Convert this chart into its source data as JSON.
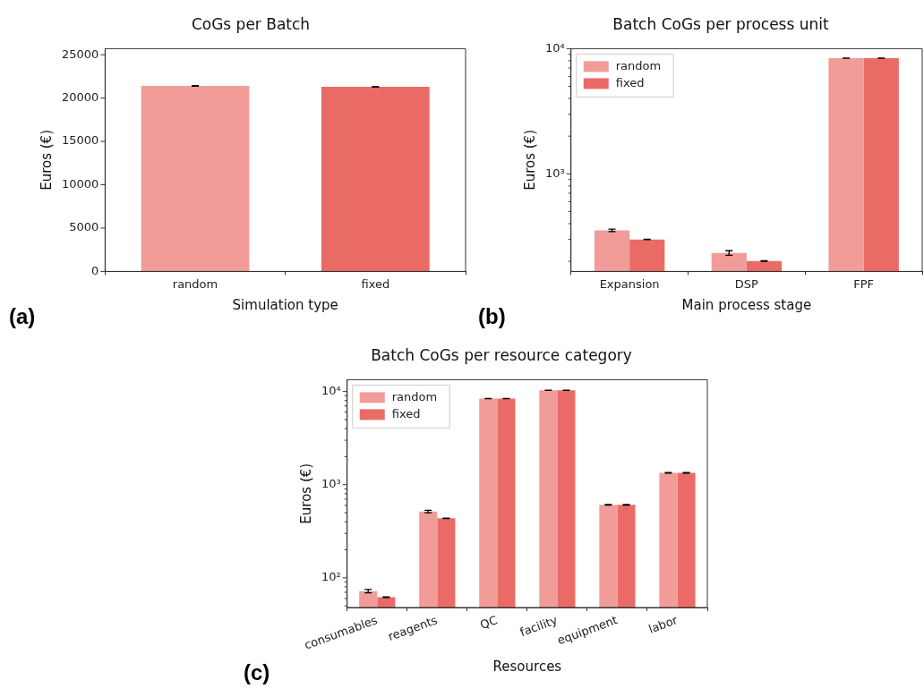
{
  "chart_data": [
    {
      "type": "bar",
      "title": "CoGs per Batch",
      "xlabel": "Simulation type",
      "ylabel": "Euros (€)",
      "categories": [
        "random",
        "fixed"
      ],
      "values": [
        21400,
        21300
      ],
      "colors": [
        "#f19c99",
        "#ea6b66"
      ],
      "errors": [
        40,
        40
      ],
      "ylim": [
        0,
        25700
      ],
      "yticks": [
        0,
        5000,
        10000,
        15000,
        20000,
        25000
      ],
      "grid": false,
      "legend": false,
      "annotations": [
        "(a)"
      ]
    },
    {
      "type": "bar",
      "title": "Batch CoGs per process unit",
      "xlabel": "Main process stage",
      "ylabel": "Euros (€)",
      "categories": [
        "Expansion",
        "DSP",
        "FPF"
      ],
      "log": "y",
      "ylim": [
        166,
        10000
      ],
      "yticks": [
        {
          "value": 200,
          "label": null
        },
        {
          "value": 300,
          "label": null
        },
        {
          "value": 400,
          "label": null
        },
        {
          "value": 500,
          "label": null
        },
        {
          "value": 600,
          "label": null
        },
        {
          "value": 700,
          "label": null
        },
        {
          "value": 800,
          "label": null
        },
        {
          "value": 900,
          "label": null
        },
        {
          "value": 1000,
          "label": "10³"
        },
        {
          "value": 2000,
          "label": null
        },
        {
          "value": 3000,
          "label": null
        },
        {
          "value": 4000,
          "label": null
        },
        {
          "value": 5000,
          "label": null
        },
        {
          "value": 6000,
          "label": null
        },
        {
          "value": 7000,
          "label": null
        },
        {
          "value": 8000,
          "label": null
        },
        {
          "value": 9000,
          "label": null
        },
        {
          "value": 10000,
          "label": "10⁴"
        }
      ],
      "grid": false,
      "legend": "top left",
      "annotations": [
        "(b)"
      ],
      "series": [
        {
          "name": "random",
          "color": "#f19c99",
          "values": [
            354,
            233,
            8400
          ],
          "errors": [
            8,
            10,
            20
          ]
        },
        {
          "name": "fixed",
          "color": "#ea6b66",
          "values": [
            299,
            201,
            8400
          ],
          "errors": [
            1,
            1,
            20
          ]
        }
      ]
    },
    {
      "type": "bar",
      "title": "Batch CoGs per resource category",
      "xlabel": "Resources",
      "ylabel": "Euros (€)",
      "categories": [
        "consumables",
        "reagents",
        "QC",
        "facility",
        "equipment",
        "labor"
      ],
      "log": "y",
      "ylim": [
        48,
        13400
      ],
      "yticks": [
        {
          "value": 50,
          "label": null
        },
        {
          "value": 60,
          "label": null
        },
        {
          "value": 70,
          "label": null
        },
        {
          "value": 80,
          "label": null
        },
        {
          "value": 90,
          "label": null
        },
        {
          "value": 100,
          "label": "10²"
        },
        {
          "value": 200,
          "label": null
        },
        {
          "value": 300,
          "label": null
        },
        {
          "value": 400,
          "label": null
        },
        {
          "value": 500,
          "label": null
        },
        {
          "value": 600,
          "label": null
        },
        {
          "value": 700,
          "label": null
        },
        {
          "value": 800,
          "label": null
        },
        {
          "value": 900,
          "label": null
        },
        {
          "value": 1000,
          "label": "10³"
        },
        {
          "value": 2000,
          "label": null
        },
        {
          "value": 3000,
          "label": null
        },
        {
          "value": 4000,
          "label": null
        },
        {
          "value": 5000,
          "label": null
        },
        {
          "value": 6000,
          "label": null
        },
        {
          "value": 7000,
          "label": null
        },
        {
          "value": 8000,
          "label": null
        },
        {
          "value": 9000,
          "label": null
        },
        {
          "value": 10000,
          "label": "10⁴"
        }
      ],
      "grid": false,
      "legend": "top left",
      "annotations": [
        "(c)"
      ],
      "series": [
        {
          "name": "random",
          "color": "#f19c99",
          "values": [
            72,
            515,
            8400,
            10300,
            608,
            1340
          ],
          "errors": [
            3,
            15,
            20,
            20,
            5,
            10
          ]
        },
        {
          "name": "fixed",
          "color": "#ea6b66",
          "values": [
            62,
            436,
            8400,
            10300,
            608,
            1340
          ],
          "errors": [
            0.5,
            2,
            20,
            20,
            5,
            10
          ]
        }
      ]
    }
  ]
}
